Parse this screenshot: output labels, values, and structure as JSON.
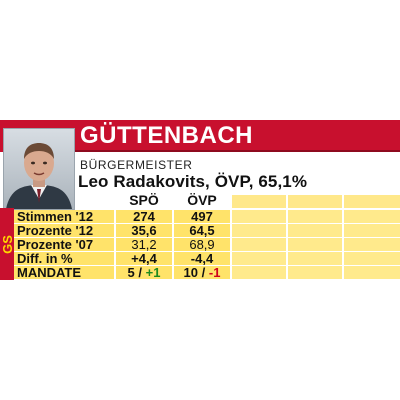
{
  "title": "GÜTTENBACH",
  "office_label": "BÜRGERMEISTER",
  "mayor": "Leo Radakovits, ÖVP, 65,1%",
  "state_code": "GS",
  "colors": {
    "red": "#c8102e",
    "yellow": "#ffe36a",
    "green": "#1f8a1f",
    "negative": "#d0021b"
  },
  "photo_icon": "portrait-photo",
  "table": {
    "headers": [
      "SPÖ",
      "ÖVP"
    ],
    "rows": [
      {
        "label": "Stimmen '12",
        "spo": "274",
        "ovp": "497"
      },
      {
        "label": "Prozente '12",
        "spo": "35,6",
        "ovp": "64,5"
      },
      {
        "label": "Prozente '07",
        "spo": "31,2",
        "ovp": "68,9"
      },
      {
        "label": "Diff. in %",
        "spo": "+4,4",
        "ovp": "-4,4"
      }
    ],
    "mandate": {
      "label": "MANDATE",
      "spo_seats": "5",
      "spo_change": "+1",
      "ovp_seats": "10",
      "ovp_change": "-1",
      "sep": "/"
    }
  }
}
